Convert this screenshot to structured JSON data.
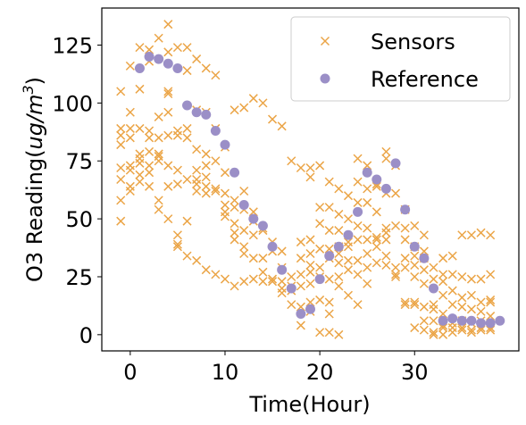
{
  "chart_data": {
    "type": "scatter",
    "title": "",
    "xlabel": "Time(Hour)",
    "ylabel_main": "O3 Reading(",
    "ylabel_italic": "ug/m",
    "ylabel_sup": "3",
    "ylabel_close": ")",
    "xlim": [
      -3,
      41
    ],
    "ylim": [
      -7,
      141
    ],
    "xticks": [
      0,
      10,
      20,
      30
    ],
    "yticks": [
      0,
      25,
      50,
      75,
      100,
      125
    ],
    "grid": false,
    "legend_position": "top-right",
    "colors": {
      "sensors": "#eba547",
      "reference": "#9b8fc7"
    },
    "series": [
      {
        "name": "Sensors",
        "marker": "x",
        "points": [
          [
            -1,
            105
          ],
          [
            -1,
            89
          ],
          [
            -1,
            86
          ],
          [
            -1,
            82
          ],
          [
            -1,
            72
          ],
          [
            -1,
            67
          ],
          [
            -1,
            58
          ],
          [
            -1,
            49
          ],
          [
            0,
            116
          ],
          [
            0,
            96
          ],
          [
            0,
            89
          ],
          [
            0,
            85
          ],
          [
            0,
            73
          ],
          [
            0,
            71
          ],
          [
            0,
            64
          ],
          [
            0,
            62
          ],
          [
            1,
            124
          ],
          [
            1,
            106
          ],
          [
            1,
            89
          ],
          [
            1,
            78
          ],
          [
            1,
            76
          ],
          [
            1,
            74
          ],
          [
            1,
            69
          ],
          [
            1,
            66
          ],
          [
            2,
            123
          ],
          [
            2,
            118
          ],
          [
            2,
            88
          ],
          [
            2,
            85
          ],
          [
            2,
            79
          ],
          [
            2,
            73
          ],
          [
            2,
            70
          ],
          [
            2,
            64
          ],
          [
            3,
            128
          ],
          [
            3,
            94
          ],
          [
            3,
            85
          ],
          [
            3,
            78
          ],
          [
            3,
            77
          ],
          [
            3,
            75
          ],
          [
            3,
            58
          ],
          [
            3,
            54
          ],
          [
            4,
            134
          ],
          [
            4,
            122
          ],
          [
            4,
            105
          ],
          [
            4,
            104
          ],
          [
            4,
            96
          ],
          [
            4,
            86
          ],
          [
            4,
            73
          ],
          [
            4,
            64
          ],
          [
            4,
            50
          ],
          [
            5,
            124
          ],
          [
            5,
            88
          ],
          [
            5,
            86
          ],
          [
            5,
            71
          ],
          [
            5,
            65
          ],
          [
            5,
            43
          ],
          [
            5,
            39
          ],
          [
            5,
            38
          ],
          [
            6,
            124
          ],
          [
            6,
            114
          ],
          [
            6,
            89
          ],
          [
            6,
            85
          ],
          [
            6,
            67
          ],
          [
            6,
            49
          ],
          [
            6,
            34
          ],
          [
            7,
            119
          ],
          [
            7,
            97
          ],
          [
            7,
            80
          ],
          [
            7,
            71
          ],
          [
            7,
            67
          ],
          [
            7,
            65
          ],
          [
            7,
            62
          ],
          [
            7,
            32
          ],
          [
            8,
            115
          ],
          [
            8,
            96
          ],
          [
            8,
            78
          ],
          [
            8,
            73
          ],
          [
            8,
            68
          ],
          [
            8,
            64
          ],
          [
            8,
            61
          ],
          [
            8,
            28
          ],
          [
            9,
            112
          ],
          [
            9,
            89
          ],
          [
            9,
            75
          ],
          [
            9,
            63
          ],
          [
            9,
            62
          ],
          [
            9,
            26
          ],
          [
            10,
            81
          ],
          [
            10,
            70
          ],
          [
            10,
            61
          ],
          [
            10,
            56
          ],
          [
            10,
            53
          ],
          [
            10,
            51
          ],
          [
            10,
            24
          ],
          [
            11,
            97
          ],
          [
            11,
            58
          ],
          [
            11,
            55
          ],
          [
            11,
            48
          ],
          [
            11,
            44
          ],
          [
            11,
            41
          ],
          [
            11,
            21
          ],
          [
            12,
            98
          ],
          [
            12,
            62
          ],
          [
            12,
            54
          ],
          [
            12,
            45
          ],
          [
            12,
            38
          ],
          [
            12,
            35
          ],
          [
            12,
            23
          ],
          [
            13,
            102
          ],
          [
            13,
            53
          ],
          [
            13,
            49
          ],
          [
            13,
            43
          ],
          [
            13,
            33
          ],
          [
            13,
            24
          ],
          [
            14,
            100
          ],
          [
            14,
            46
          ],
          [
            14,
            45
          ],
          [
            14,
            33
          ],
          [
            14,
            27
          ],
          [
            14,
            23
          ],
          [
            15,
            93
          ],
          [
            15,
            40
          ],
          [
            15,
            36
          ],
          [
            15,
            24
          ],
          [
            15,
            23
          ],
          [
            16,
            90
          ],
          [
            16,
            36
          ],
          [
            16,
            29
          ],
          [
            16,
            23
          ],
          [
            16,
            20
          ],
          [
            16,
            18
          ],
          [
            17,
            75
          ],
          [
            17,
            25
          ],
          [
            17,
            21
          ],
          [
            17,
            19
          ],
          [
            17,
            13
          ],
          [
            18,
            72
          ],
          [
            18,
            40
          ],
          [
            18,
            33
          ],
          [
            18,
            26
          ],
          [
            18,
            21
          ],
          [
            18,
            12
          ],
          [
            18,
            4
          ],
          [
            19,
            72
          ],
          [
            19,
            68
          ],
          [
            19,
            41
          ],
          [
            19,
            35
          ],
          [
            19,
            30
          ],
          [
            19,
            27
          ],
          [
            19,
            22
          ],
          [
            19,
            14
          ],
          [
            19,
            10
          ],
          [
            20,
            73
          ],
          [
            20,
            55
          ],
          [
            20,
            48
          ],
          [
            20,
            37
          ],
          [
            20,
            29
          ],
          [
            20,
            25
          ],
          [
            20,
            15
          ],
          [
            20,
            1
          ],
          [
            21,
            66
          ],
          [
            21,
            55
          ],
          [
            21,
            45
          ],
          [
            21,
            37
          ],
          [
            21,
            33
          ],
          [
            21,
            24
          ],
          [
            21,
            14
          ],
          [
            21,
            9
          ],
          [
            21,
            1
          ],
          [
            22,
            63
          ],
          [
            22,
            52
          ],
          [
            22,
            45
          ],
          [
            22,
            38
          ],
          [
            22,
            35
          ],
          [
            22,
            31
          ],
          [
            22,
            25
          ],
          [
            22,
            21
          ],
          [
            22,
            0
          ],
          [
            23,
            60
          ],
          [
            23,
            50
          ],
          [
            23,
            40
          ],
          [
            23,
            38
          ],
          [
            23,
            32
          ],
          [
            23,
            28
          ],
          [
            23,
            17
          ],
          [
            24,
            76
          ],
          [
            24,
            66
          ],
          [
            24,
            57
          ],
          [
            24,
            47
          ],
          [
            24,
            41
          ],
          [
            24,
            32
          ],
          [
            24,
            26
          ],
          [
            24,
            13
          ],
          [
            25,
            73
          ],
          [
            25,
            63
          ],
          [
            25,
            57
          ],
          [
            25,
            46
          ],
          [
            25,
            41
          ],
          [
            25,
            35
          ],
          [
            25,
            29
          ],
          [
            25,
            22
          ],
          [
            26,
            65
          ],
          [
            26,
            64
          ],
          [
            26,
            53
          ],
          [
            26,
            42
          ],
          [
            26,
            41
          ],
          [
            26,
            38
          ],
          [
            26,
            31
          ],
          [
            27,
            79
          ],
          [
            27,
            76
          ],
          [
            27,
            61
          ],
          [
            27,
            46
          ],
          [
            27,
            44
          ],
          [
            27,
            41
          ],
          [
            27,
            34
          ],
          [
            27,
            30
          ],
          [
            28,
            73
          ],
          [
            28,
            61
          ],
          [
            28,
            47
          ],
          [
            28,
            29
          ],
          [
            28,
            26
          ],
          [
            28,
            25
          ],
          [
            29,
            54
          ],
          [
            29,
            46
          ],
          [
            29,
            41
          ],
          [
            29,
            33
          ],
          [
            29,
            29
          ],
          [
            29,
            14
          ],
          [
            29,
            13
          ],
          [
            30,
            47
          ],
          [
            30,
            38
          ],
          [
            30,
            34
          ],
          [
            30,
            30
          ],
          [
            30,
            25
          ],
          [
            30,
            14
          ],
          [
            30,
            13
          ],
          [
            30,
            3
          ],
          [
            31,
            43
          ],
          [
            31,
            36
          ],
          [
            31,
            33
          ],
          [
            31,
            28
          ],
          [
            31,
            22
          ],
          [
            31,
            12
          ],
          [
            31,
            6
          ],
          [
            31,
            2
          ],
          [
            32,
            29
          ],
          [
            32,
            24
          ],
          [
            32,
            13
          ],
          [
            32,
            11
          ],
          [
            32,
            6
          ],
          [
            32,
            1
          ],
          [
            32,
            0
          ],
          [
            33,
            33
          ],
          [
            33,
            26
          ],
          [
            33,
            23
          ],
          [
            33,
            17
          ],
          [
            33,
            9
          ],
          [
            33,
            4
          ],
          [
            33,
            3
          ],
          [
            33,
            0
          ],
          [
            34,
            34
          ],
          [
            34,
            26
          ],
          [
            34,
            19
          ],
          [
            34,
            13
          ],
          [
            34,
            5
          ],
          [
            34,
            3
          ],
          [
            34,
            1
          ],
          [
            35,
            43
          ],
          [
            35,
            25
          ],
          [
            35,
            16
          ],
          [
            35,
            12
          ],
          [
            35,
            6
          ],
          [
            35,
            3
          ],
          [
            35,
            2
          ],
          [
            36,
            43
          ],
          [
            36,
            24
          ],
          [
            36,
            17
          ],
          [
            36,
            11
          ],
          [
            36,
            5
          ],
          [
            36,
            2
          ],
          [
            36,
            1
          ],
          [
            37,
            44
          ],
          [
            37,
            24
          ],
          [
            37,
            14
          ],
          [
            37,
            10
          ],
          [
            37,
            6
          ],
          [
            37,
            3
          ],
          [
            37,
            2
          ],
          [
            38,
            43
          ],
          [
            38,
            26
          ],
          [
            38,
            15
          ],
          [
            38,
            14
          ],
          [
            38,
            8
          ],
          [
            38,
            3
          ],
          [
            38,
            2
          ]
        ]
      },
      {
        "name": "Reference",
        "marker": "o",
        "points": [
          [
            1,
            115
          ],
          [
            2,
            120
          ],
          [
            3,
            119
          ],
          [
            4,
            117
          ],
          [
            5,
            115
          ],
          [
            6,
            99
          ],
          [
            7,
            96
          ],
          [
            8,
            95
          ],
          [
            9,
            88
          ],
          [
            10,
            82
          ],
          [
            11,
            70
          ],
          [
            12,
            56
          ],
          [
            13,
            50
          ],
          [
            14,
            47
          ],
          [
            15,
            38
          ],
          [
            16,
            28
          ],
          [
            17,
            20
          ],
          [
            18,
            9
          ],
          [
            19,
            11
          ],
          [
            20,
            24
          ],
          [
            21,
            34
          ],
          [
            22,
            38
          ],
          [
            23,
            43
          ],
          [
            24,
            53
          ],
          [
            25,
            70
          ],
          [
            26,
            67
          ],
          [
            27,
            63
          ],
          [
            28,
            74
          ],
          [
            29,
            54
          ],
          [
            30,
            38
          ],
          [
            31,
            33
          ],
          [
            32,
            20
          ],
          [
            33,
            6
          ],
          [
            34,
            7
          ],
          [
            35,
            6
          ],
          [
            36,
            6
          ],
          [
            37,
            5
          ],
          [
            38,
            5
          ],
          [
            39,
            6
          ]
        ]
      }
    ]
  }
}
